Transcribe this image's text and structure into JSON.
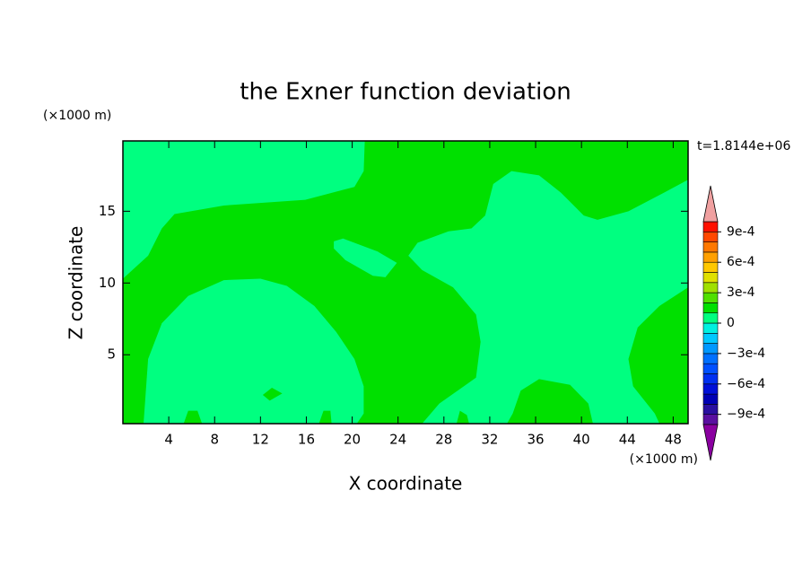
{
  "chart_data": {
    "type": "contour",
    "title": "the Exner function deviation",
    "x_label": "X coordinate",
    "y_label": "Z coordinate",
    "x_unit": "(×1000 m)",
    "y_unit": "(×1000 m)",
    "time_label": "t=1.8144e+06",
    "xlim": [
      0,
      49.3
    ],
    "ylim": [
      0.2,
      19.9
    ],
    "xticks": [
      4,
      8,
      12,
      16,
      20,
      24,
      28,
      32,
      36,
      40,
      44,
      48
    ],
    "yticks": [
      5,
      10,
      15
    ],
    "background_color": "#00e000",
    "regions": [
      {
        "color": "#00ff80",
        "points": [
          [
            0,
            19.9
          ],
          [
            21.1,
            19.9
          ],
          [
            21.0,
            17.8
          ],
          [
            20.2,
            16.7
          ],
          [
            15.9,
            15.8
          ],
          [
            8.8,
            15.4
          ],
          [
            4.5,
            14.8
          ],
          [
            3.4,
            13.8
          ],
          [
            2.2,
            11.9
          ],
          [
            0,
            10.3
          ]
        ]
      },
      {
        "color": "#00ff80",
        "points": [
          [
            26.1,
            0.2
          ],
          [
            27.6,
            1.6
          ],
          [
            30.8,
            3.4
          ],
          [
            31.2,
            5.9
          ],
          [
            30.8,
            7.8
          ],
          [
            28.8,
            9.7
          ],
          [
            26.1,
            10.9
          ],
          [
            24.9,
            11.9
          ],
          [
            25.7,
            12.8
          ],
          [
            28.4,
            13.6
          ],
          [
            30.4,
            13.8
          ],
          [
            31.6,
            14.7
          ],
          [
            32.3,
            16.9
          ],
          [
            33.9,
            17.8
          ],
          [
            36.3,
            17.5
          ],
          [
            38.2,
            16.3
          ],
          [
            40.2,
            14.7
          ],
          [
            41.4,
            14.4
          ],
          [
            44.1,
            15.0
          ],
          [
            47.2,
            16.3
          ],
          [
            49.3,
            17.2
          ],
          [
            49.3,
            9.7
          ],
          [
            46.8,
            8.4
          ],
          [
            44.9,
            6.9
          ],
          [
            44.1,
            4.7
          ],
          [
            44.5,
            2.8
          ],
          [
            46.4,
            0.9
          ],
          [
            46.8,
            0.2
          ],
          [
            41.0,
            0.2
          ],
          [
            40.6,
            1.6
          ],
          [
            39.0,
            2.9
          ],
          [
            36.3,
            3.3
          ],
          [
            34.7,
            2.5
          ],
          [
            34.0,
            0.9
          ],
          [
            33.5,
            0.2
          ]
        ]
      },
      {
        "color": "#00ff80",
        "points": [
          [
            1.8,
            0.2
          ],
          [
            2.2,
            4.7
          ],
          [
            3.4,
            7.2
          ],
          [
            5.7,
            9.1
          ],
          [
            8.8,
            10.2
          ],
          [
            12.0,
            10.3
          ],
          [
            14.3,
            9.8
          ],
          [
            16.7,
            8.4
          ],
          [
            18.6,
            6.6
          ],
          [
            20.2,
            4.7
          ],
          [
            21.0,
            2.8
          ],
          [
            21.0,
            0.9
          ],
          [
            20.4,
            0.2
          ]
        ]
      },
      {
        "color": "#00ff80",
        "points": [
          [
            18.4,
            12.9
          ],
          [
            19.2,
            13.1
          ],
          [
            22.2,
            12.2
          ],
          [
            23.9,
            11.4
          ],
          [
            22.9,
            10.4
          ],
          [
            21.8,
            10.5
          ],
          [
            19.4,
            11.6
          ],
          [
            18.4,
            12.4
          ]
        ]
      },
      {
        "color": "#00e000",
        "points": [
          [
            5.3,
            0.2
          ],
          [
            5.7,
            1.1
          ],
          [
            6.5,
            1.1
          ],
          [
            6.9,
            0.2
          ]
        ]
      },
      {
        "color": "#00e000",
        "points": [
          [
            17.1,
            0.2
          ],
          [
            17.5,
            1.1
          ],
          [
            18.1,
            1.1
          ],
          [
            18.2,
            0.2
          ]
        ]
      },
      {
        "color": "#00e000",
        "points": [
          [
            12.2,
            2.2
          ],
          [
            13.0,
            2.7
          ],
          [
            13.9,
            2.3
          ],
          [
            12.8,
            1.8
          ]
        ]
      },
      {
        "color": "#00e000",
        "points": [
          [
            29.1,
            0.2
          ],
          [
            29.4,
            1.1
          ],
          [
            30.0,
            0.8
          ],
          [
            30.2,
            0.2
          ]
        ]
      }
    ],
    "colorbar": {
      "lim": [
        -0.001,
        0.001
      ],
      "levels": [
        -0.001,
        -0.0009,
        -0.0008,
        -0.0007,
        -0.0006,
        -0.0005,
        -0.0004,
        -0.0003,
        -0.0002,
        -0.0001,
        0,
        0.0001,
        0.0002,
        0.0003,
        0.0004,
        0.0005,
        0.0006,
        0.0007,
        0.0008,
        0.0009,
        0.001
      ],
      "colors": [
        "#5a10a0",
        "#2a10a0",
        "#0000b4",
        "#0010d8",
        "#0030f0",
        "#0050ff",
        "#0070ff",
        "#0098ff",
        "#00c8ff",
        "#00f0e0",
        "#00ff80",
        "#00e000",
        "#50e000",
        "#a0e000",
        "#e0e000",
        "#ffc800",
        "#ffa000",
        "#ff7800",
        "#ff4800",
        "#ff1000"
      ],
      "under_color": "#8a00a0",
      "over_color": "#f0a0a0",
      "ticks": [
        {
          "value": 0.0009,
          "label": "9e-4"
        },
        {
          "value": 0.0006,
          "label": "6e-4"
        },
        {
          "value": 0.0003,
          "label": "3e-4"
        },
        0,
        {
          "value": -0.0003,
          "label": "−3e-4"
        },
        {
          "value": -0.0006,
          "label": "−6e-4"
        },
        {
          "value": -0.0009,
          "label": "−9e-4"
        }
      ]
    }
  }
}
